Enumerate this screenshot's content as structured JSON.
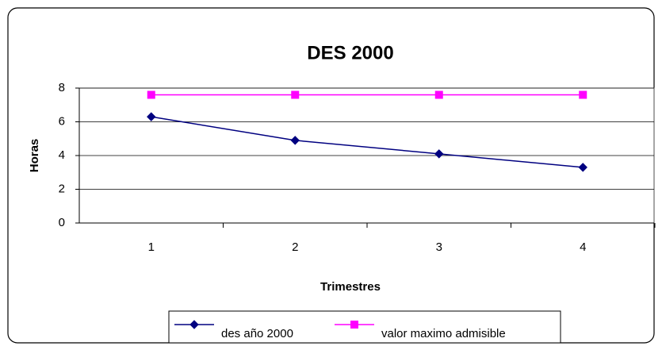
{
  "chart_data": {
    "type": "line",
    "title": "DES 2000",
    "x_label": "Trimestres",
    "y_label": "Horas",
    "categories": [
      "1",
      "2",
      "3",
      "4"
    ],
    "series": [
      {
        "name": "des año 2000",
        "color": "#000080",
        "marker": "diamond",
        "values": [
          6.3,
          4.9,
          4.1,
          3.3
        ]
      },
      {
        "name": "valor maximo admisible",
        "color": "#ff00ff",
        "marker": "square",
        "values": [
          7.6,
          7.6,
          7.6,
          7.6
        ]
      }
    ],
    "ylim": [
      0,
      8
    ],
    "yticks": [
      0,
      2,
      4,
      6,
      8
    ],
    "grid": true
  }
}
